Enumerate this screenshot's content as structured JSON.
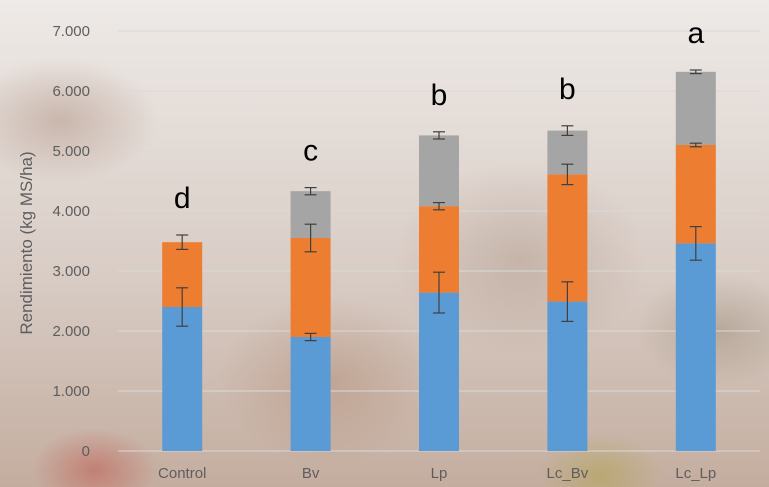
{
  "chart_data": {
    "type": "bar",
    "stacked": true,
    "categories": [
      "Control",
      "Bv",
      "Lp",
      "Lc_Bv",
      "Lc_Lp"
    ],
    "series": [
      {
        "color": "#5b9bd5",
        "values": [
          2400,
          1900,
          2640,
          2490,
          3460
        ],
        "error": [
          320,
          60,
          340,
          330,
          280
        ]
      },
      {
        "color": "#ed7d31",
        "values": [
          1080,
          1650,
          1440,
          2120,
          1640
        ],
        "error": [
          120,
          230,
          60,
          170,
          30
        ]
      },
      {
        "color": "#a5a5a5",
        "values": [
          0,
          780,
          1180,
          730,
          1220
        ],
        "error": [
          0,
          60,
          60,
          80,
          30
        ]
      }
    ],
    "significance_letters": [
      "d",
      "c",
      "b",
      "b",
      "a"
    ],
    "ylabel": "Rendimiento (kg MS/ha)",
    "xlabel": "",
    "ylim": [
      0,
      7000
    ],
    "yticks": [
      0,
      1000,
      2000,
      3000,
      4000,
      5000,
      6000,
      7000
    ],
    "ytick_labels": [
      "0",
      "1.000",
      "2.000",
      "3.000",
      "4.000",
      "5.000",
      "6.000",
      "7.000"
    ],
    "grid": true,
    "legend": "none",
    "gridline_color": "#d9d9d9",
    "error_bar_color": "#404040"
  }
}
